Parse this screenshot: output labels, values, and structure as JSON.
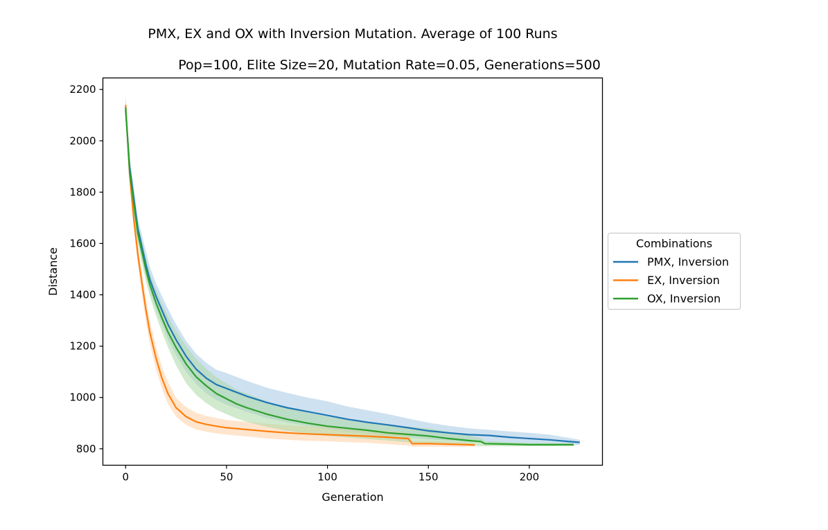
{
  "chart_data": {
    "type": "line",
    "title": "PMX, EX and OX with Inversion Mutation. Average of 100 Runs",
    "subtitle": "Pop=100, Elite Size=20, Mutation Rate=0.05, Generations=500",
    "xlabel": "Generation",
    "ylabel": "Distance",
    "xlim": [
      -11.25,
      236.25
    ],
    "ylim": [
      736,
      2245
    ],
    "xticks": [
      0,
      50,
      100,
      150,
      200
    ],
    "yticks": [
      800,
      1000,
      1200,
      1400,
      1600,
      1800,
      2000,
      2200
    ],
    "grid": false,
    "legend": {
      "title": "Combinations",
      "placement": "center-right-outside"
    },
    "series": [
      {
        "name": "PMX, Inversion",
        "color": "#1f77b4",
        "band_color": "#a6c8e3",
        "x": [
          0,
          2,
          4,
          6,
          8,
          10,
          12,
          15,
          18,
          21,
          25,
          30,
          35,
          40,
          45,
          50,
          55,
          60,
          70,
          80,
          90,
          100,
          110,
          120,
          130,
          140,
          150,
          160,
          170,
          180,
          190,
          200,
          210,
          220,
          225
        ],
        "y": [
          2120,
          1900,
          1780,
          1660,
          1590,
          1520,
          1460,
          1395,
          1340,
          1285,
          1225,
          1160,
          1110,
          1075,
          1050,
          1035,
          1020,
          1005,
          980,
          960,
          945,
          930,
          915,
          903,
          893,
          882,
          870,
          862,
          855,
          852,
          845,
          840,
          835,
          828,
          825
        ],
        "low": [
          2080,
          1870,
          1740,
          1620,
          1545,
          1475,
          1415,
          1345,
          1285,
          1225,
          1165,
          1100,
          1052,
          1016,
          990,
          972,
          958,
          944,
          920,
          902,
          890,
          878,
          866,
          858,
          850,
          845,
          837,
          832,
          827,
          824,
          820,
          818,
          815,
          815,
          815
        ],
        "high": [
          2170,
          1930,
          1820,
          1700,
          1635,
          1570,
          1510,
          1445,
          1395,
          1345,
          1285,
          1220,
          1170,
          1135,
          1108,
          1095,
          1080,
          1065,
          1038,
          1018,
          1000,
          985,
          965,
          950,
          935,
          918,
          902,
          890,
          880,
          874,
          868,
          862,
          855,
          842,
          835
        ]
      },
      {
        "name": "EX, Inversion",
        "color": "#ff7f0e",
        "band_color": "#ffcfa4",
        "x": [
          0,
          2,
          4,
          6,
          8,
          10,
          12,
          15,
          18,
          21,
          25,
          30,
          35,
          40,
          45,
          50,
          60,
          70,
          80,
          90,
          100,
          110,
          120,
          130,
          135,
          140,
          142,
          150,
          160,
          173
        ],
        "y": [
          2140,
          1870,
          1700,
          1560,
          1450,
          1345,
          1255,
          1155,
          1075,
          1015,
          960,
          925,
          905,
          895,
          888,
          882,
          875,
          868,
          862,
          858,
          855,
          852,
          849,
          845,
          842,
          840,
          820,
          820,
          818,
          815
        ],
        "low": [
          2100,
          1840,
          1665,
          1520,
          1405,
          1300,
          1210,
          1110,
          1035,
          975,
          925,
          893,
          875,
          866,
          860,
          855,
          848,
          840,
          835,
          831,
          829,
          826,
          823,
          818,
          815,
          813,
          808,
          808,
          808,
          808
        ],
        "high": [
          2180,
          1900,
          1735,
          1600,
          1495,
          1390,
          1300,
          1200,
          1120,
          1060,
          998,
          962,
          940,
          928,
          920,
          912,
          905,
          898,
          892,
          888,
          885,
          880,
          875,
          870,
          866,
          862,
          830,
          830,
          828,
          822
        ]
      },
      {
        "name": "OX, Inversion",
        "color": "#2ca02c",
        "band_color": "#abd9a4",
        "x": [
          0,
          2,
          4,
          6,
          8,
          10,
          12,
          15,
          18,
          21,
          25,
          30,
          35,
          40,
          45,
          50,
          55,
          60,
          70,
          80,
          90,
          100,
          110,
          120,
          130,
          140,
          150,
          160,
          170,
          176,
          178,
          190,
          200,
          222
        ],
        "y": [
          2130,
          1880,
          1760,
          1640,
          1570,
          1500,
          1440,
          1370,
          1310,
          1255,
          1195,
          1130,
          1080,
          1045,
          1015,
          995,
          975,
          960,
          935,
          915,
          900,
          888,
          880,
          872,
          862,
          856,
          850,
          840,
          832,
          828,
          820,
          818,
          816,
          816
        ],
        "low": [
          2090,
          1850,
          1720,
          1600,
          1525,
          1455,
          1395,
          1320,
          1255,
          1195,
          1125,
          1055,
          1010,
          978,
          952,
          935,
          918,
          905,
          885,
          870,
          860,
          850,
          844,
          838,
          832,
          825,
          820,
          815,
          812,
          810,
          810,
          810,
          810,
          810
        ],
        "high": [
          2170,
          1910,
          1800,
          1680,
          1615,
          1545,
          1485,
          1420,
          1365,
          1315,
          1260,
          1200,
          1150,
          1112,
          1078,
          1055,
          1030,
          1015,
          985,
          960,
          940,
          925,
          915,
          905,
          892,
          885,
          880,
          866,
          852,
          842,
          830,
          826,
          822,
          822
        ]
      }
    ]
  }
}
